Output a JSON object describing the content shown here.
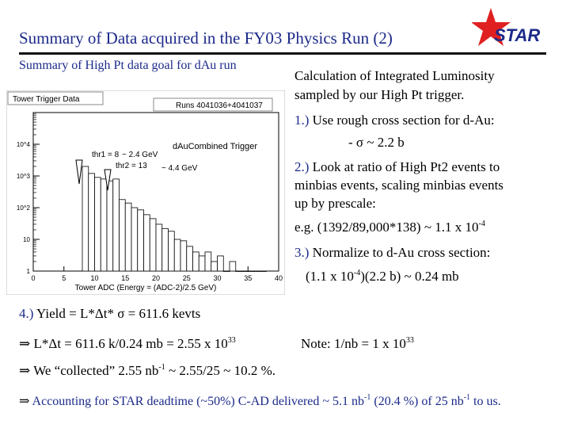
{
  "header": {
    "title": "Summary of Data acquired in the FY03 Physics Run (2)",
    "logo_text": "STAR",
    "logo_star_color": "#e02020",
    "logo_text_color": "#1c2a8a"
  },
  "left": {
    "subtitle": "Summary of High Pt data goal for dAu run"
  },
  "plot": {
    "panel_title": "Tower Trigger Data",
    "runs": "Runs 4041036+4041037",
    "trigger_label": "dAuCombined Trigger",
    "thr1": "thr1 = 8",
    "thr1_energy": "~ 2.4 GeV",
    "thr2": "thr2 = 13",
    "thr2_energy": "~ 4.4 GeV",
    "xlabel": "Tower ADC (Energy = (ADC-2)/2.5 GeV)"
  },
  "chart_data": {
    "type": "bar",
    "title": "Tower Trigger Data",
    "xlabel": "Tower ADC (Energy = (ADC-2)/2.5 GeV)",
    "ylabel": "",
    "ylog": true,
    "xlim": [
      0,
      40
    ],
    "ylim": [
      1,
      100000
    ],
    "x_ticks": [
      "0",
      "5",
      "10",
      "15",
      "20",
      "25",
      "30",
      "35",
      "40"
    ],
    "y_ticks": [
      "1",
      "10",
      "10^2",
      "10^3",
      "10^4"
    ],
    "bins": [
      {
        "x": 8,
        "y": 2000
      },
      {
        "x": 9,
        "y": 1200
      },
      {
        "x": 10,
        "y": 900
      },
      {
        "x": 11,
        "y": 800
      },
      {
        "x": 12,
        "y": 700
      },
      {
        "x": 13,
        "y": 800
      },
      {
        "x": 14,
        "y": 180
      },
      {
        "x": 15,
        "y": 140
      },
      {
        "x": 16,
        "y": 100
      },
      {
        "x": 17,
        "y": 85
      },
      {
        "x": 18,
        "y": 60
      },
      {
        "x": 19,
        "y": 45
      },
      {
        "x": 20,
        "y": 30
      },
      {
        "x": 21,
        "y": 22
      },
      {
        "x": 22,
        "y": 18
      },
      {
        "x": 23,
        "y": 10
      },
      {
        "x": 24,
        "y": 9
      },
      {
        "x": 25,
        "y": 6
      },
      {
        "x": 26,
        "y": 4
      },
      {
        "x": 27,
        "y": 3
      },
      {
        "x": 28,
        "y": 4
      },
      {
        "x": 29,
        "y": 2
      },
      {
        "x": 30,
        "y": 3
      },
      {
        "x": 31,
        "y": 1
      },
      {
        "x": 32,
        "y": 2
      },
      {
        "x": 33,
        "y": 1
      },
      {
        "x": 34,
        "y": 1
      },
      {
        "x": 35,
        "y": 1
      },
      {
        "x": 36,
        "y": 1
      },
      {
        "x": 37,
        "y": 1
      }
    ],
    "annotations": [
      "thr1 = 8",
      "thr2 = 13",
      "~ 2.4 GeV",
      "~ 4.4 GeV"
    ]
  },
  "right": {
    "line1": "Calculation of Integrated Luminosity",
    "line2": "sampled by our High Pt trigger.",
    "item1_num": "1.)",
    "item1_text": "Use rough cross section for d-Au:",
    "item1_sub": "- σ ~ 2.2 b",
    "item2_num": "2.)",
    "item2_text": "Look at ratio of High Pt2 events to",
    "item2_line2": "minbias events, scaling minbias events",
    "item2_line3": "up by prescale:",
    "eg_text": "e.g. (1392/89,000*138) ~ 1.1 x 10",
    "eg_exp": "-4",
    "item3_num": "3.)",
    "item3_text": "Normalize to d-Au cross section:",
    "item3_eq_a": "(1.1 x 10",
    "item3_eq_exp": "-4",
    "item3_eq_b": ")(2.2 b) ~ 0.24 mb"
  },
  "bottom": {
    "item4_num": "4.)",
    "item4_text": "Yield = L*Δt* σ = 611.6 kevts",
    "arrow": "⇒",
    "line_lt": "L*Δt = 611.6 k/0.24 mb = 2.55 x 10",
    "line_lt_exp": "33",
    "note": "Note: 1/nb = 1 x 10",
    "note_exp": "33",
    "collected_a": "We “collected” 2.55 nb",
    "collected_exp": "-1",
    "collected_b": " ~ 2.55/25 ~ 10.2 %.",
    "acc_a": "Accounting for STAR deadtime (~50%) C-AD delivered ~ 5.1 nb",
    "acc_exp": "-1",
    "acc_b": " (20.4 %) of 25 nb",
    "acc_exp2": "-1",
    "acc_c": " to us."
  }
}
